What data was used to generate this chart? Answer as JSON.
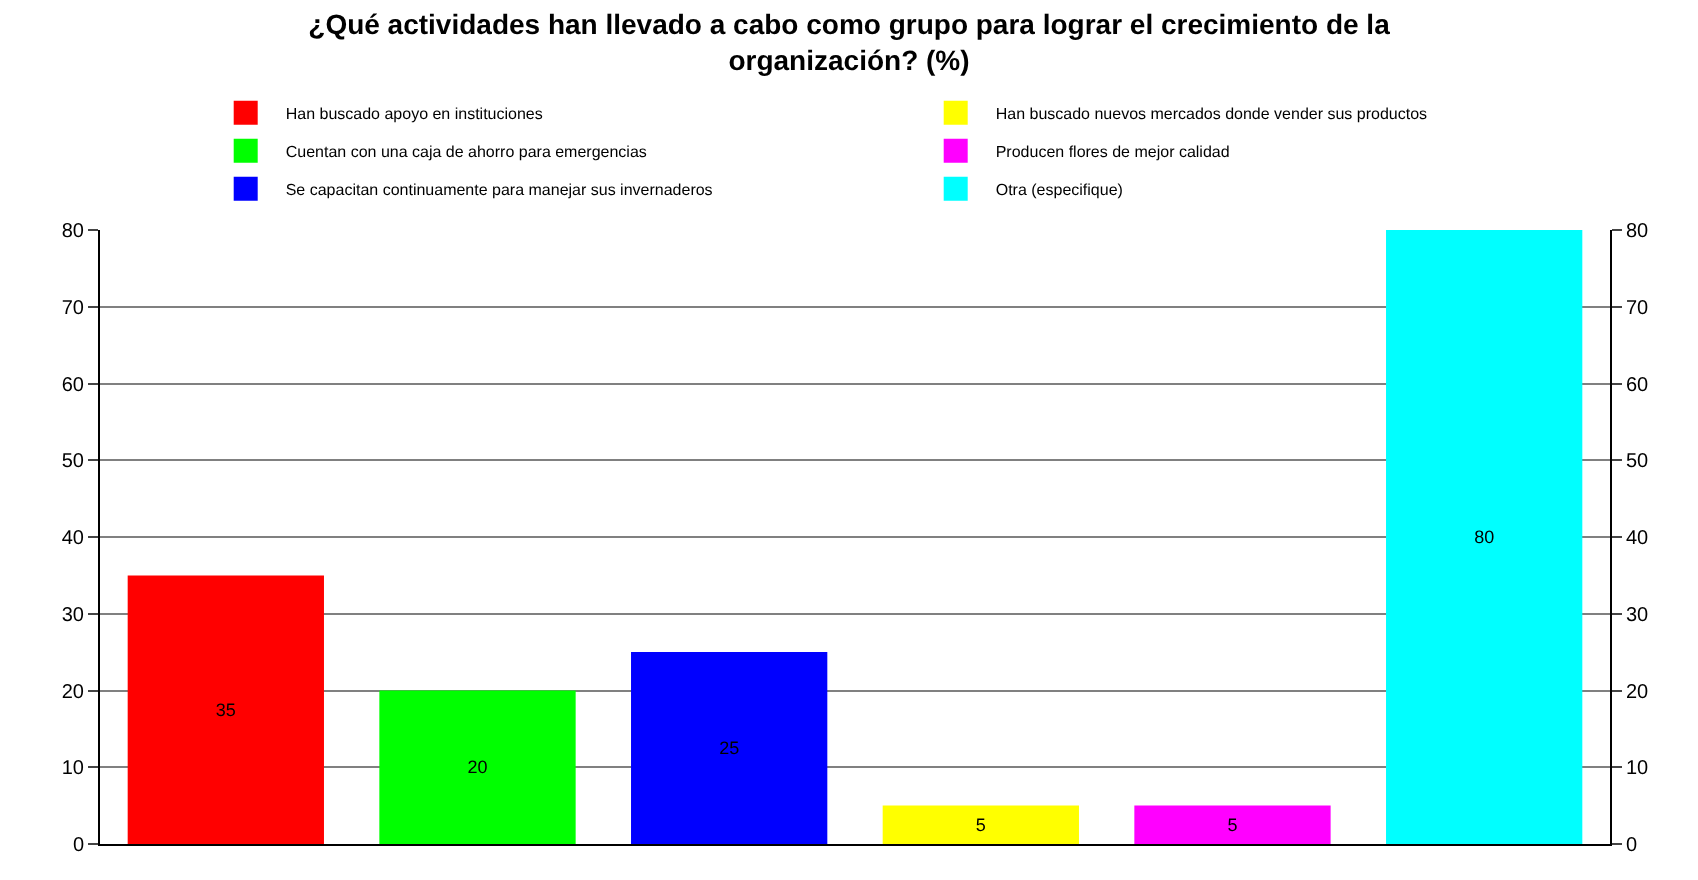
{
  "chart_data": {
    "type": "bar",
    "title": "¿Qué actividades han llevado a cabo como grupo para lograr el crecimiento de la organización? (%)",
    "categories": [
      null,
      null,
      null,
      null,
      null,
      null
    ],
    "series": [
      {
        "name": "Han buscado apoyo en instituciones",
        "color": "#ff0000",
        "values": [
          35,
          null,
          null,
          null,
          null,
          null
        ]
      },
      {
        "name": "Cuentan con una caja de ahorro para emergencias",
        "color": "#00ff00",
        "values": [
          null,
          20,
          null,
          null,
          null,
          null
        ]
      },
      {
        "name": "Se capacitan continuamente para manejar sus invernaderos",
        "color": "#0000ff",
        "values": [
          null,
          null,
          25,
          null,
          null,
          null
        ]
      },
      {
        "name": "Han buscado nuevos mercados donde vender sus productos",
        "color": "#ffff00",
        "values": [
          null,
          null,
          null,
          5,
          null,
          null
        ]
      },
      {
        "name": "Producen flores de mejor calidad",
        "color": "#ff00ff",
        "values": [
          null,
          null,
          null,
          null,
          5,
          null
        ]
      },
      {
        "name": "Otra (especifique)",
        "color": "#00ffff",
        "values": [
          null,
          null,
          null,
          null,
          null,
          80
        ]
      }
    ],
    "ylim": [
      0,
      80
    ],
    "yticks": [
      0,
      10,
      20,
      30,
      40,
      50,
      60,
      70,
      80
    ],
    "y2lim": [
      0,
      80
    ],
    "y2ticks": [
      0,
      10,
      20,
      30,
      40,
      50,
      60,
      70,
      80
    ],
    "grid": "y",
    "legend": "top",
    "data_labels": true
  }
}
